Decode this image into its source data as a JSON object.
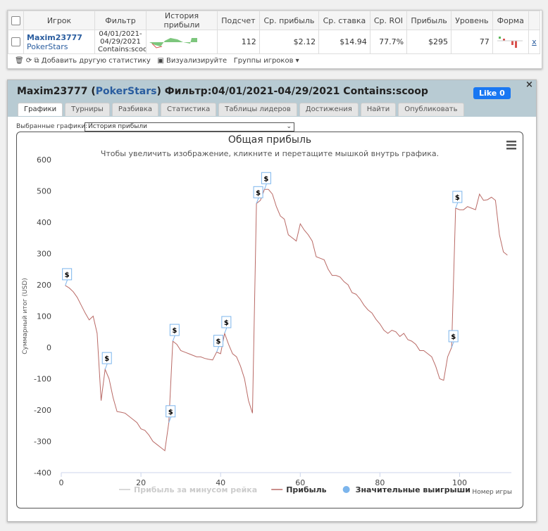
{
  "table": {
    "header": [
      "Игрок",
      "Фильтр",
      "История прибыли",
      "Подсчет",
      "Ср. прибыль",
      "Ср. ставка",
      "Ср. ROI",
      "Прибыль",
      "Уровень",
      "Форма"
    ],
    "row": {
      "player": "Maxim23777",
      "site": "PokerStars",
      "filter": [
        "04/01/2021-",
        "04/29/2021",
        "Contains:scoop"
      ],
      "cells": [
        "112",
        "$2.12",
        "$14.94",
        "77.7%",
        "$295",
        "77"
      ],
      "remove": "x"
    }
  },
  "toolbar": {
    "add": "Добавить другую статистику",
    "visualize": "Визуализируйте",
    "groups": "Группы игроков"
  },
  "panel": {
    "player": "Maxim23777",
    "site": "PokerStars",
    "filter": "Фильтр:04/01/2021-04/29/2021 Contains:scoop",
    "like": "Like 0",
    "close": "×",
    "tabs": [
      "Графики",
      "Турниры",
      "Разбивка",
      "Статистика",
      "Таблицы лидеров",
      "Достижения",
      "Найти",
      "Опубликовать"
    ],
    "select_label": "Выбранные графики:",
    "select_value": "История прибыли"
  },
  "chart_data": {
    "type": "line",
    "title": "Общая прибыль",
    "subtitle": "Чтобы увеличить изображение, кликните и перетащите мышкой внутрь графика.",
    "x_label": "Номер игры",
    "y_label": "Суммарный итог (USD)",
    "marker_label": "$",
    "xlim": [
      0,
      113
    ],
    "xticks": [
      0,
      20,
      40,
      60,
      80,
      100
    ],
    "ylim": [
      -400,
      600
    ],
    "yticks": [
      -400,
      -300,
      -200,
      -100,
      0,
      100,
      200,
      300,
      400,
      500,
      600
    ],
    "grid": false,
    "x": [
      1,
      2,
      3,
      4,
      5,
      6,
      7,
      8,
      9,
      10,
      11,
      12,
      13,
      14,
      15,
      16,
      17,
      18,
      19,
      20,
      21,
      22,
      23,
      24,
      25,
      26,
      27,
      28,
      29,
      30,
      31,
      32,
      33,
      34,
      35,
      36,
      37,
      38,
      39,
      40,
      41,
      42,
      43,
      44,
      45,
      46,
      47,
      48,
      49,
      50,
      51,
      52,
      53,
      54,
      55,
      56,
      57,
      58,
      59,
      60,
      61,
      62,
      63,
      64,
      65,
      66,
      67,
      68,
      69,
      70,
      71,
      72,
      73,
      74,
      75,
      76,
      77,
      78,
      79,
      80,
      81,
      82,
      83,
      84,
      85,
      86,
      87,
      88,
      89,
      90,
      91,
      92,
      93,
      94,
      95,
      96,
      97,
      98,
      99,
      100,
      101,
      102,
      103,
      104,
      105,
      106,
      107,
      108,
      109,
      110,
      111,
      112
    ],
    "series": [
      {
        "name": "Прибыль за минусом рейка",
        "color": "#cccccc",
        "visible": false
      },
      {
        "name": "Прибыль",
        "color": "#b96a66",
        "values": [
          198,
          190,
          178,
          160,
          135,
          110,
          88,
          100,
          45,
          -170,
          -70,
          -100,
          -160,
          -205,
          -207,
          -210,
          -220,
          -230,
          -240,
          -260,
          -265,
          -280,
          -300,
          -310,
          -320,
          -330,
          -240,
          20,
          10,
          -10,
          -15,
          -20,
          -25,
          -30,
          -30,
          -35,
          -38,
          -40,
          -15,
          -20,
          45,
          10,
          -20,
          -30,
          -60,
          -100,
          -170,
          -210,
          460,
          470,
          505,
          505,
          490,
          450,
          420,
          410,
          360,
          350,
          340,
          395,
          375,
          360,
          340,
          290,
          285,
          280,
          250,
          230,
          230,
          225,
          210,
          200,
          175,
          170,
          155,
          135,
          120,
          110,
          90,
          75,
          55,
          45,
          55,
          50,
          35,
          45,
          25,
          20,
          10,
          -10,
          -10,
          -20,
          -30,
          -60,
          -100,
          -105,
          -30,
          0,
          445,
          440,
          440,
          450,
          445,
          440,
          490,
          470,
          472,
          480,
          470,
          360,
          305,
          295
        ]
      },
      {
        "name": "Значительные выигрыши",
        "color": "#7cb5ec",
        "x": [
          1,
          11,
          27,
          28,
          39,
          41,
          49,
          51,
          98,
          99
        ],
        "values": [
          198,
          -70,
          -240,
          20,
          -15,
          45,
          460,
          505,
          0,
          445
        ]
      }
    ]
  }
}
